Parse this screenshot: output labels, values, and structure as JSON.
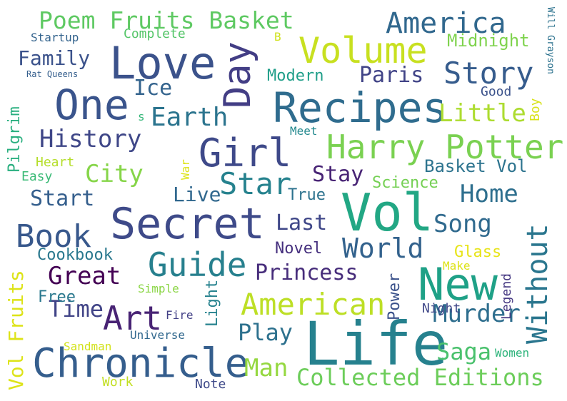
{
  "words": [
    {
      "text": "Life",
      "color": "#26818e"
    },
    {
      "text": "Vol",
      "color": "#22a784"
    },
    {
      "text": "Love",
      "color": "#3b528b"
    },
    {
      "text": "Secret",
      "color": "#3e4a89"
    },
    {
      "text": "Recipes",
      "color": "#2f6c8e"
    },
    {
      "text": "Chronicle",
      "color": "#355e8d"
    },
    {
      "text": "New",
      "color": "#1fa187"
    },
    {
      "text": "One",
      "color": "#3a548c"
    },
    {
      "text": "Girl",
      "color": "#3e4989"
    },
    {
      "text": "Volume",
      "color": "#c8e020"
    },
    {
      "text": "Harry Potter",
      "color": "#7ad151"
    },
    {
      "text": "Day",
      "color": "#433e85"
    },
    {
      "text": "Art",
      "color": "#482374"
    },
    {
      "text": "Guide",
      "color": "#27808e"
    },
    {
      "text": "Book",
      "color": "#38588c"
    },
    {
      "text": "America",
      "color": "#31688e"
    },
    {
      "text": "American",
      "color": "#bddf26"
    },
    {
      "text": "Story",
      "color": "#365c8d"
    },
    {
      "text": "Star",
      "color": "#26828e"
    },
    {
      "text": "Without",
      "color": "#2a768e"
    },
    {
      "text": "Poem Fruits Basket",
      "color": "#5ec962"
    },
    {
      "text": "History",
      "color": "#3f4788"
    },
    {
      "text": "Earth",
      "color": "#2b748e"
    },
    {
      "text": "World",
      "color": "#33628d"
    },
    {
      "text": "Collected Editions",
      "color": "#6ccd5a"
    },
    {
      "text": "Great",
      "color": "#440154"
    },
    {
      "text": "Princess",
      "color": "#472d7b"
    },
    {
      "text": "Murder",
      "color": "#2e6e8e"
    },
    {
      "text": "Home",
      "color": "#2e6f8e"
    },
    {
      "text": "Little",
      "color": "#addc30"
    },
    {
      "text": "City",
      "color": "#86d549"
    },
    {
      "text": "Song",
      "color": "#306a8e"
    },
    {
      "text": "Time",
      "color": "#414487"
    },
    {
      "text": "Play",
      "color": "#2d718e"
    },
    {
      "text": "Saga",
      "color": "#4ac16d"
    },
    {
      "text": "Man",
      "color": "#95d840"
    },
    {
      "text": "Family",
      "color": "#3b528b"
    },
    {
      "text": "Ice",
      "color": "#33638d"
    },
    {
      "text": "Paris",
      "color": "#414487"
    },
    {
      "text": "Live",
      "color": "#31688e"
    },
    {
      "text": "Last",
      "color": "#3f4788"
    },
    {
      "text": "Stay",
      "color": "#482475"
    },
    {
      "text": "Start",
      "color": "#355f8d"
    },
    {
      "text": "Basket Vol",
      "color": "#2c738e"
    },
    {
      "text": "Midnight",
      "color": "#7fd34e"
    },
    {
      "text": "Modern",
      "color": "#1f9e89"
    },
    {
      "text": "Cookbook",
      "color": "#2a788e"
    },
    {
      "text": "Vol Fruits",
      "color": "#dde318"
    },
    {
      "text": "Novel",
      "color": "#46307e"
    },
    {
      "text": "Science",
      "color": "#75d054"
    },
    {
      "text": "True",
      "color": "#2c728e"
    },
    {
      "text": "Free",
      "color": "#2a788e"
    },
    {
      "text": "Power",
      "color": "#3b528b"
    },
    {
      "text": "Light",
      "color": "#26828e"
    },
    {
      "text": "Pilgrim",
      "color": "#29af7f"
    },
    {
      "text": "Glass",
      "color": "#e7e419"
    },
    {
      "text": "Complete",
      "color": "#54c568"
    },
    {
      "text": "Good",
      "color": "#3b528b"
    },
    {
      "text": "Startup",
      "color": "#33638d"
    },
    {
      "text": "Heart",
      "color": "#b5de2b"
    },
    {
      "text": "Easy",
      "color": "#3aba76"
    },
    {
      "text": "War",
      "color": "#dde318"
    },
    {
      "text": "Meet",
      "color": "#23898e"
    },
    {
      "text": "Boy",
      "color": "#d8e219"
    },
    {
      "text": "Legend",
      "color": "#453882"
    },
    {
      "text": "Night",
      "color": "#3f4788"
    },
    {
      "text": "Make",
      "color": "#dde318"
    },
    {
      "text": "Women",
      "color": "#2fb47c"
    },
    {
      "text": "Fire",
      "color": "#424086"
    },
    {
      "text": "Universe",
      "color": "#31688e"
    },
    {
      "text": "Simple",
      "color": "#8bd646"
    },
    {
      "text": "Sandman",
      "color": "#d2e21b"
    },
    {
      "text": "Work",
      "color": "#c2df23"
    },
    {
      "text": "Note",
      "color": "#3e4989"
    },
    {
      "text": "Rat Queens",
      "color": "#355f8d"
    },
    {
      "text": "Will Grayson",
      "color": "#2c728e"
    },
    {
      "text": "B",
      "color": "#d0e11c"
    },
    {
      "text": "s",
      "color": "#35b779"
    }
  ]
}
